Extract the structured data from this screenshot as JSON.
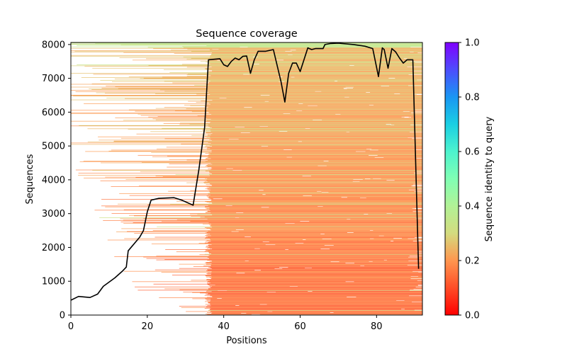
{
  "chart_data": {
    "type": "heatmap",
    "title": "Sequence coverage",
    "xlabel": "Positions",
    "ylabel": "Sequences",
    "xlim": [
      0,
      92
    ],
    "ylim": [
      0,
      8060
    ],
    "xticks": [
      "0",
      "20",
      "40",
      "60",
      "80"
    ],
    "xtick_values": [
      0,
      20,
      40,
      60,
      80
    ],
    "yticks": [
      "0",
      "1000",
      "2000",
      "3000",
      "4000",
      "5000",
      "6000",
      "7000",
      "8000"
    ],
    "ytick_values": [
      0,
      1000,
      2000,
      3000,
      4000,
      5000,
      6000,
      7000,
      8000
    ],
    "grid": false,
    "colorbar": {
      "label": "Sequence identity to query",
      "colormap": "rainbow_r",
      "range": [
        0,
        1
      ],
      "ticks": [
        "0.0",
        "0.2",
        "0.4",
        "0.6",
        "0.8",
        "1.0"
      ],
      "tick_values": [
        0.0,
        0.2,
        0.4,
        0.6,
        0.8,
        1.0
      ],
      "stops": [
        {
          "v": 0.0,
          "color": "#ff0000"
        },
        {
          "v": 0.1,
          "color": "#ff4d27"
        },
        {
          "v": 0.2,
          "color": "#ff964f"
        },
        {
          "v": 0.3,
          "color": "#d4dc7f"
        },
        {
          "v": 0.4,
          "color": "#b2f296"
        },
        {
          "v": 0.5,
          "color": "#80ffb4"
        },
        {
          "v": 0.6,
          "color": "#4df3ce"
        },
        {
          "v": 0.7,
          "color": "#1acfe3"
        },
        {
          "v": 0.8,
          "color": "#1996f3"
        },
        {
          "v": 0.9,
          "color": "#4d4dfc"
        },
        {
          "v": 1.0,
          "color": "#8000ff"
        }
      ]
    },
    "coverage_regions": [
      {
        "description": "sparse N-terminal alignments",
        "x_range": [
          0,
          35
        ],
        "identity_typical": 0.25
      },
      {
        "description": "dense core alignment block",
        "x_range": [
          35,
          92
        ],
        "identity_typical": 0.2
      }
    ],
    "series": [
      {
        "name": "coverage",
        "color": "#000000",
        "x": [
          0,
          2,
          5,
          7,
          8.5,
          11.5,
          13.5,
          14.5,
          15,
          18,
          19,
          20,
          21,
          23,
          27,
          29,
          32,
          33.5,
          35,
          36,
          39,
          40,
          41,
          42,
          43,
          44,
          45,
          46,
          47,
          48,
          49,
          51,
          53,
          55,
          56,
          57,
          58,
          59,
          60,
          61,
          62,
          63,
          64,
          66,
          66.5,
          68,
          70,
          74,
          77,
          79,
          80.5,
          81.5,
          82,
          83,
          84,
          85,
          86,
          87,
          88,
          89.5,
          91
        ],
        "y": [
          440,
          550,
          520,
          620,
          850,
          1100,
          1300,
          1420,
          1900,
          2300,
          2500,
          3050,
          3400,
          3450,
          3470,
          3400,
          3250,
          4300,
          5550,
          7550,
          7580,
          7400,
          7350,
          7500,
          7600,
          7550,
          7650,
          7660,
          7150,
          7550,
          7800,
          7800,
          7850,
          6900,
          6300,
          7150,
          7450,
          7450,
          7200,
          7550,
          7900,
          7850,
          7880,
          7880,
          8000,
          8030,
          8040,
          8000,
          7950,
          7880,
          7050,
          7900,
          7850,
          7300,
          7880,
          7780,
          7600,
          7450,
          7550,
          7550,
          1370
        ]
      }
    ]
  }
}
